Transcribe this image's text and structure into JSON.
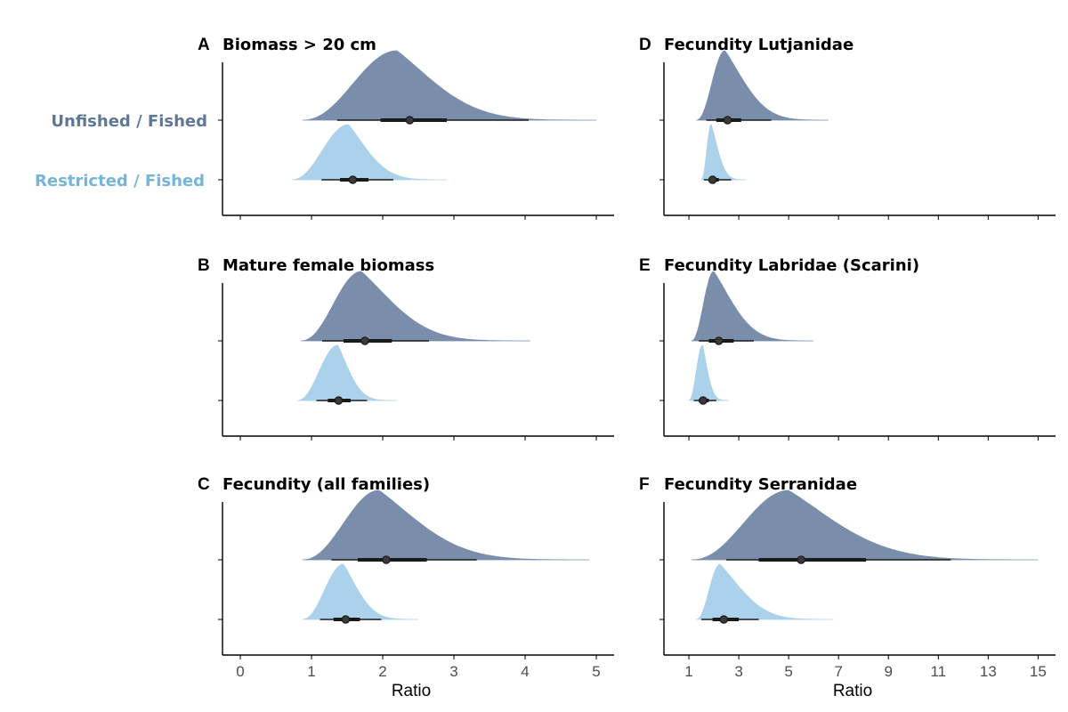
{
  "colors": {
    "unfished": "#7a8eab",
    "restricted": "#abd2ea",
    "unfished_text": "#5e7698",
    "restricted_text": "#74b5d9",
    "interval": "#1a1a1a",
    "axis": "#000000"
  },
  "legend": {
    "unfished": "Unfished / Fished",
    "restricted": "Restricted / Fished"
  },
  "chart_data": [
    {
      "panel": "A",
      "title": "Biomass > 20 cm",
      "type": "area",
      "xlabel": "",
      "xlim": [
        -0.25,
        5.25
      ],
      "xticks": [
        0,
        1,
        2,
        3,
        4,
        5
      ],
      "series": [
        {
          "name": "Unfished / Fished",
          "min": 0.87,
          "mode": 2.2,
          "max": 5.0,
          "median": 2.38,
          "inner": [
            1.97,
            2.9
          ],
          "outer": [
            1.36,
            4.05
          ]
        },
        {
          "name": "Restricted / Fished",
          "min": 0.72,
          "mode": 1.52,
          "max": 2.9,
          "median": 1.58,
          "inner": [
            1.4,
            1.8
          ],
          "outer": [
            1.14,
            2.15
          ]
        }
      ]
    },
    {
      "panel": "B",
      "title": "Mature female biomass",
      "type": "area",
      "xlabel": "",
      "xlim": [
        -0.25,
        5.25
      ],
      "xticks": [
        0,
        1,
        2,
        3,
        4,
        5
      ],
      "series": [
        {
          "name": "Unfished / Fished",
          "min": 0.85,
          "mode": 1.7,
          "max": 4.07,
          "median": 1.75,
          "inner": [
            1.45,
            2.13
          ],
          "outer": [
            1.15,
            2.65
          ]
        },
        {
          "name": "Restricted / Fished",
          "min": 0.8,
          "mode": 1.37,
          "max": 2.2,
          "median": 1.38,
          "inner": [
            1.23,
            1.55
          ],
          "outer": [
            1.07,
            1.78
          ]
        }
      ]
    },
    {
      "panel": "C",
      "title": "Fecundity (all families)",
      "type": "area",
      "xlabel": "Ratio",
      "xlim": [
        -0.25,
        5.25
      ],
      "xticks": [
        0,
        1,
        2,
        3,
        4,
        5
      ],
      "series": [
        {
          "name": "Unfished / Fished",
          "min": 0.87,
          "mode": 1.95,
          "max": 4.9,
          "median": 2.05,
          "inner": [
            1.65,
            2.62
          ],
          "outer": [
            1.28,
            3.32
          ]
        },
        {
          "name": "Restricted / Fished",
          "min": 0.87,
          "mode": 1.45,
          "max": 2.5,
          "median": 1.48,
          "inner": [
            1.31,
            1.68
          ],
          "outer": [
            1.12,
            1.98
          ]
        }
      ]
    },
    {
      "panel": "D",
      "title": "Fecundity Lutjanidae",
      "type": "area",
      "xlabel": "",
      "xlim": [
        0.0,
        15.7
      ],
      "xticks": [
        1,
        3,
        5,
        7,
        9,
        11,
        13,
        15
      ],
      "series": [
        {
          "name": "Unfished / Fished",
          "min": 1.3,
          "mode": 2.45,
          "max": 6.6,
          "median": 2.55,
          "inner": [
            2.1,
            3.1
          ],
          "outer": [
            1.7,
            4.3
          ]
        },
        {
          "name": "Restricted / Fished",
          "min": 1.5,
          "mode": 1.9,
          "max": 3.3,
          "median": 1.95,
          "inner": [
            1.8,
            2.2
          ],
          "outer": [
            1.6,
            2.7
          ]
        }
      ]
    },
    {
      "panel": "E",
      "title": "Fecundity Labridae (Scarini)",
      "type": "area",
      "xlabel": "",
      "xlim": [
        0.0,
        15.7
      ],
      "xticks": [
        1,
        3,
        5,
        7,
        9,
        11,
        13,
        15
      ],
      "series": [
        {
          "name": "Unfished / Fished",
          "min": 1.1,
          "mode": 2.0,
          "max": 6.0,
          "median": 2.2,
          "inner": [
            1.8,
            2.8
          ],
          "outer": [
            1.4,
            3.6
          ]
        },
        {
          "name": "Restricted / Fished",
          "min": 1.0,
          "mode": 1.55,
          "max": 2.6,
          "median": 1.57,
          "inner": [
            1.4,
            1.8
          ],
          "outer": [
            1.2,
            2.1
          ]
        }
      ]
    },
    {
      "panel": "F",
      "title": "Fecundity Serranidae",
      "type": "area",
      "xlabel": "Ratio",
      "xlim": [
        0.0,
        15.7
      ],
      "xticks": [
        1,
        3,
        5,
        7,
        9,
        11,
        13,
        15
      ],
      "series": [
        {
          "name": "Unfished / Fished",
          "min": 1.1,
          "mode": 5.0,
          "max": 15.0,
          "median": 5.5,
          "inner": [
            3.8,
            8.1
          ],
          "outer": [
            2.5,
            11.5
          ]
        },
        {
          "name": "Restricted / Fished",
          "min": 1.3,
          "mode": 2.25,
          "max": 6.8,
          "median": 2.4,
          "inner": [
            1.95,
            3.0
          ],
          "outer": [
            1.5,
            3.8
          ]
        }
      ]
    }
  ]
}
